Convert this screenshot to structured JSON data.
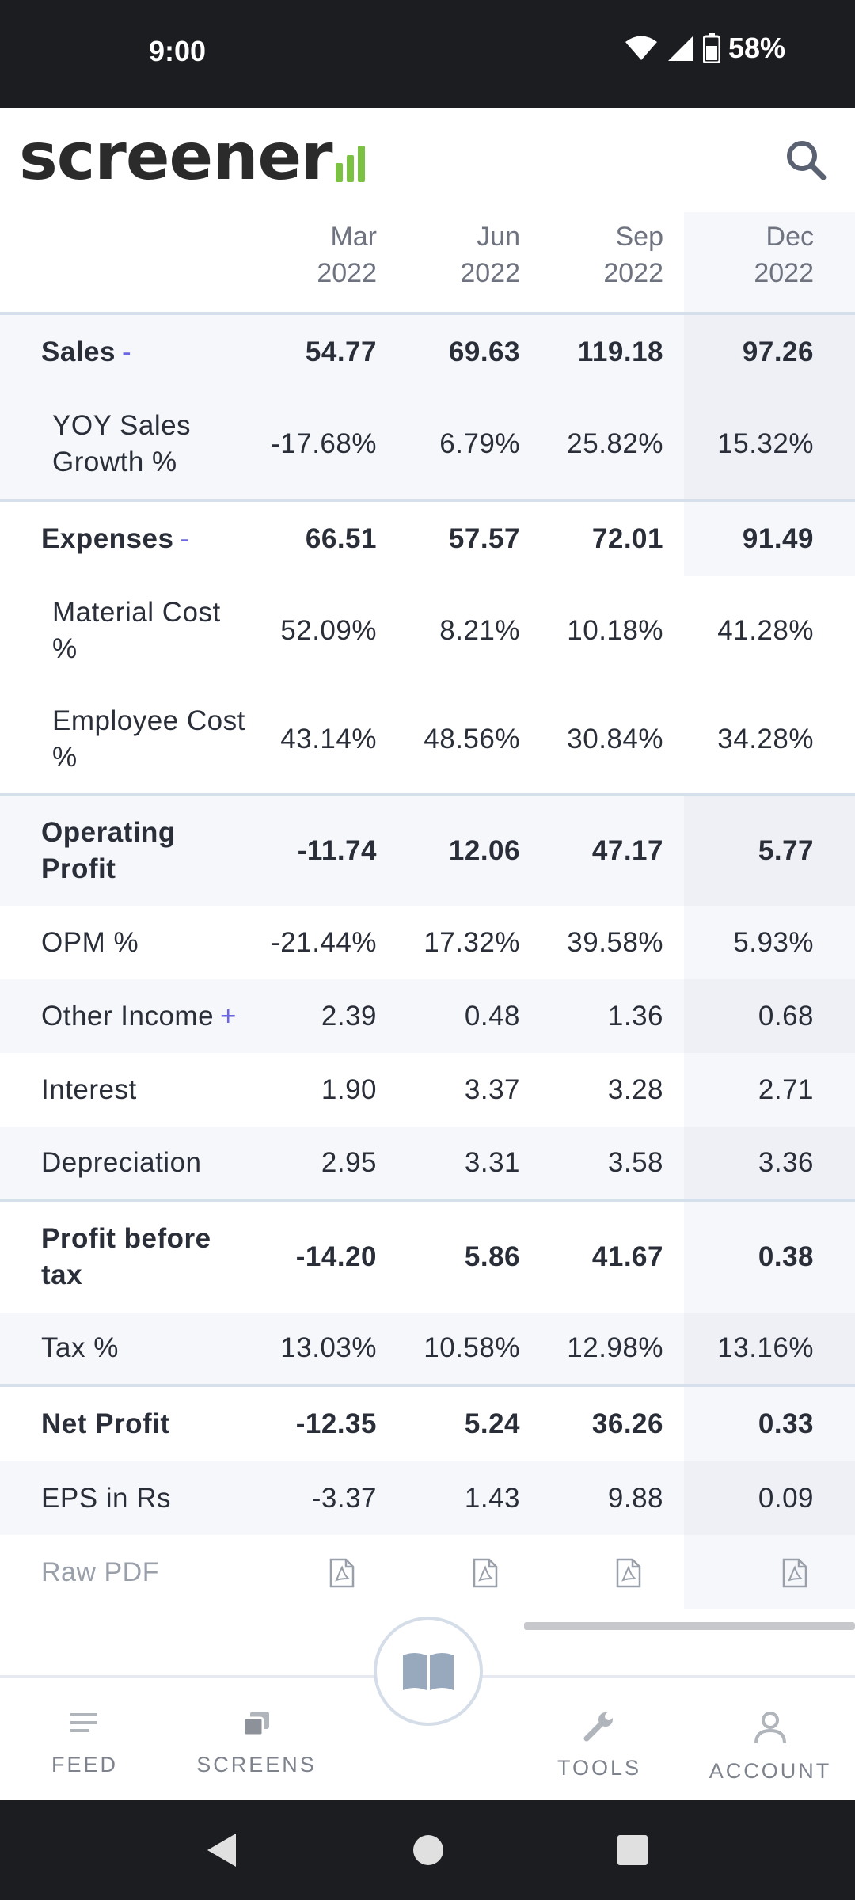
{
  "status_bar": {
    "time": "9:00",
    "battery": "58%"
  },
  "header": {
    "logo_text": "screener"
  },
  "table": {
    "columns": [
      {
        "month": "Mar",
        "year": "2022"
      },
      {
        "month": "Jun",
        "year": "2022"
      },
      {
        "month": "Sep",
        "year": "2022"
      },
      {
        "month": "Dec",
        "year": "2022"
      }
    ],
    "rows": [
      {
        "label": "Sales",
        "suffix": "-",
        "values": [
          "54.77",
          "69.63",
          "119.18",
          "97.26"
        ]
      },
      {
        "label": "YOY Sales Growth %",
        "values": [
          "-17.68%",
          "6.79%",
          "25.82%",
          "15.32%"
        ]
      },
      {
        "label": "Expenses",
        "suffix": "-",
        "values": [
          "66.51",
          "57.57",
          "72.01",
          "91.49"
        ]
      },
      {
        "label": "Material Cost %",
        "values": [
          "52.09%",
          "8.21%",
          "10.18%",
          "41.28%"
        ]
      },
      {
        "label": "Employee Cost %",
        "values": [
          "43.14%",
          "48.56%",
          "30.84%",
          "34.28%"
        ]
      },
      {
        "label": "Operating Profit",
        "values": [
          "-11.74",
          "12.06",
          "47.17",
          "5.77"
        ]
      },
      {
        "label": "OPM %",
        "values": [
          "-21.44%",
          "17.32%",
          "39.58%",
          "5.93%"
        ]
      },
      {
        "label": "Other Income",
        "suffix": "+",
        "values": [
          "2.39",
          "0.48",
          "1.36",
          "0.68"
        ]
      },
      {
        "label": "Interest",
        "values": [
          "1.90",
          "3.37",
          "3.28",
          "2.71"
        ]
      },
      {
        "label": "Depreciation",
        "values": [
          "2.95",
          "3.31",
          "3.58",
          "3.36"
        ]
      },
      {
        "label": "Profit before tax",
        "values": [
          "-14.20",
          "5.86",
          "41.67",
          "0.38"
        ]
      },
      {
        "label": "Tax %",
        "values": [
          "13.03%",
          "10.58%",
          "12.98%",
          "13.16%"
        ]
      },
      {
        "label": "Net Profit",
        "values": [
          "-12.35",
          "5.24",
          "36.26",
          "0.33"
        ]
      },
      {
        "label": "EPS in Rs",
        "values": [
          "-3.37",
          "1.43",
          "9.88",
          "0.09"
        ]
      }
    ],
    "raw_pdf_label": "Raw PDF"
  },
  "bottom_nav": {
    "feed": "FEED",
    "screens": "SCREENS",
    "tools": "TOOLS",
    "account": "ACCOUNT"
  },
  "colors": {
    "accent_green": "#7cc242",
    "accent_purple": "#6d66e2",
    "status_bar_bg": "#1c1d21"
  }
}
